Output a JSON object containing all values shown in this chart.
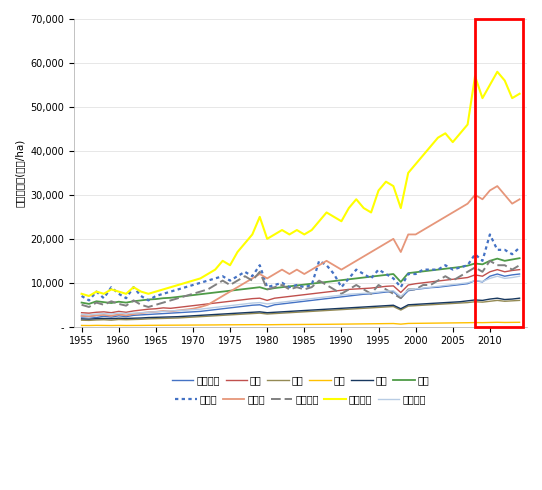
{
  "ylabel": "토지생산성(천원/ha)",
  "years": [
    1955,
    1956,
    1957,
    1958,
    1959,
    1960,
    1961,
    1962,
    1963,
    1964,
    1965,
    1966,
    1967,
    1968,
    1969,
    1970,
    1971,
    1972,
    1973,
    1974,
    1975,
    1976,
    1977,
    1978,
    1979,
    1980,
    1981,
    1982,
    1983,
    1984,
    1985,
    1986,
    1987,
    1988,
    1989,
    1990,
    1991,
    1992,
    1993,
    1994,
    1995,
    1996,
    1997,
    1998,
    1999,
    2000,
    2001,
    2002,
    2003,
    2004,
    2005,
    2006,
    2007,
    2008,
    2009,
    2010,
    2011,
    2012,
    2013,
    2014
  ],
  "series": {
    "경종부문": {
      "color": "#4472C4",
      "linestyle": "solid",
      "linewidth": 1.0,
      "values": [
        2200,
        2300,
        2100,
        2400,
        2200,
        2500,
        2300,
        2600,
        2700,
        2800,
        2900,
        3000,
        3100,
        3200,
        3300,
        3400,
        3500,
        3700,
        3900,
        4100,
        4300,
        4500,
        4700,
        4900,
        5000,
        4500,
        5000,
        5200,
        5400,
        5600,
        5800,
        6000,
        6200,
        6400,
        6600,
        6800,
        7000,
        7200,
        7400,
        7500,
        7700,
        7900,
        8000,
        6500,
        8200,
        8500,
        8700,
        8900,
        9000,
        9200,
        9400,
        9600,
        9800,
        10500,
        10200,
        11500,
        12000,
        11500,
        11800,
        12000
      ]
    },
    "미곡": {
      "color": "#C0504D",
      "linestyle": "solid",
      "linewidth": 1.0,
      "values": [
        3200,
        3100,
        3300,
        3400,
        3200,
        3500,
        3300,
        3600,
        3800,
        4000,
        4100,
        4300,
        4200,
        4400,
        4600,
        4800,
        5000,
        5200,
        5400,
        5600,
        5800,
        6000,
        6200,
        6400,
        6500,
        6000,
        6500,
        6700,
        6900,
        7100,
        7300,
        7500,
        7700,
        7900,
        8100,
        8300,
        8500,
        8600,
        8700,
        8800,
        9000,
        9200,
        9300,
        7800,
        9500,
        9800,
        10000,
        10200,
        10400,
        10600,
        10800,
        11000,
        11200,
        11800,
        11500,
        12500,
        13000,
        12500,
        12800,
        13000
      ]
    },
    "맥류": {
      "color": "#948A54",
      "linestyle": "solid",
      "linewidth": 1.0,
      "values": [
        1500,
        1450,
        1550,
        1600,
        1500,
        1650,
        1600,
        1650,
        1700,
        1800,
        1850,
        1900,
        1950,
        2000,
        2100,
        2200,
        2300,
        2400,
        2500,
        2600,
        2700,
        2800,
        2900,
        3000,
        3100,
        2900,
        3000,
        3100,
        3200,
        3300,
        3400,
        3500,
        3600,
        3700,
        3800,
        3900,
        4000,
        4100,
        4200,
        4300,
        4400,
        4500,
        4600,
        3800,
        4700,
        4800,
        4900,
        5000,
        5100,
        5200,
        5300,
        5400,
        5500,
        5700,
        5600,
        5800,
        6000,
        5800,
        5900,
        6000
      ]
    },
    "잡곡": {
      "color": "#FFC000",
      "linestyle": "solid",
      "linewidth": 1.0,
      "values": [
        300,
        280,
        320,
        300,
        280,
        310,
        290,
        300,
        310,
        330,
        340,
        350,
        360,
        370,
        380,
        390,
        400,
        410,
        420,
        440,
        450,
        460,
        470,
        480,
        490,
        460,
        480,
        500,
        510,
        520,
        530,
        540,
        550,
        560,
        580,
        600,
        620,
        640,
        660,
        680,
        700,
        720,
        740,
        600,
        760,
        780,
        800,
        820,
        840,
        860,
        880,
        900,
        920,
        960,
        940,
        980,
        1020,
        980,
        1000,
        1020
      ]
    },
    "두류": {
      "color": "#17375E",
      "linestyle": "solid",
      "linewidth": 1.0,
      "values": [
        1800,
        1750,
        1850,
        1900,
        1850,
        1950,
        1900,
        1950,
        2000,
        2100,
        2150,
        2200,
        2250,
        2300,
        2400,
        2500,
        2600,
        2700,
        2800,
        2900,
        3000,
        3100,
        3200,
        3300,
        3400,
        3200,
        3300,
        3400,
        3500,
        3600,
        3700,
        3800,
        3900,
        4000,
        4100,
        4200,
        4300,
        4400,
        4500,
        4600,
        4700,
        4800,
        4900,
        4100,
        5000,
        5100,
        5200,
        5300,
        5400,
        5500,
        5600,
        5700,
        5900,
        6100,
        6000,
        6300,
        6500,
        6200,
        6300,
        6500
      ]
    },
    "서류": {
      "color": "#4E9B47",
      "linestyle": "solid",
      "linewidth": 1.3,
      "values": [
        5500,
        5200,
        5800,
        5600,
        5400,
        5700,
        5500,
        5800,
        6000,
        6200,
        6300,
        6500,
        6600,
        6800,
        7000,
        7200,
        7400,
        7600,
        7800,
        8000,
        8200,
        8400,
        8600,
        8800,
        9000,
        8500,
        8800,
        9000,
        9200,
        9400,
        9600,
        9800,
        10000,
        10200,
        10400,
        10600,
        10800,
        11000,
        11200,
        11400,
        11600,
        11800,
        12000,
        10200,
        12200,
        12400,
        12600,
        12800,
        13000,
        13200,
        13400,
        13600,
        13900,
        14400,
        14200,
        15000,
        15500,
        15000,
        15300,
        15600
      ]
    },
    "과일류": {
      "color": "#4472C4",
      "linestyle": "dotted",
      "linewidth": 1.6,
      "values": [
        7000,
        6000,
        8000,
        6500,
        9000,
        7500,
        6500,
        9000,
        7000,
        6000,
        7000,
        7500,
        8000,
        8500,
        9000,
        9500,
        10000,
        10500,
        11000,
        11500,
        10500,
        11500,
        12500,
        11500,
        14000,
        9000,
        9500,
        10000,
        9000,
        9500,
        9000,
        9500,
        15000,
        14000,
        12000,
        9000,
        11000,
        13000,
        12000,
        11000,
        13000,
        12000,
        11000,
        9000,
        12000,
        12000,
        13000,
        13000,
        13000,
        14000,
        13000,
        13500,
        14000,
        16500,
        15000,
        21000,
        17500,
        17500,
        16500,
        18000
      ]
    },
    "채소류": {
      "color": "#E6967A",
      "linestyle": "solid",
      "linewidth": 1.3,
      "values": [
        2500,
        2400,
        2600,
        2700,
        2500,
        2800,
        2600,
        2900,
        3100,
        3300,
        3400,
        3600,
        3500,
        3700,
        3900,
        4100,
        4500,
        5000,
        6000,
        7000,
        8000,
        9000,
        10000,
        11000,
        12000,
        11000,
        12000,
        13000,
        12000,
        13000,
        12000,
        13000,
        14000,
        15000,
        14000,
        13000,
        14000,
        15000,
        16000,
        17000,
        18000,
        19000,
        20000,
        17000,
        21000,
        21000,
        22000,
        23000,
        24000,
        25000,
        26000,
        27000,
        28000,
        30000,
        29000,
        31000,
        32000,
        30000,
        28000,
        29000
      ]
    },
    "노지채소": {
      "color": "#808080",
      "linestyle": "dashed",
      "linewidth": 1.4,
      "values": [
        5000,
        4500,
        5500,
        5000,
        5800,
        5200,
        4800,
        6000,
        5000,
        4500,
        5000,
        5500,
        6000,
        6500,
        7000,
        7500,
        8000,
        8500,
        9500,
        10500,
        9500,
        10500,
        11500,
        10500,
        12500,
        8500,
        9000,
        9500,
        8500,
        9000,
        8500,
        9000,
        10500,
        9500,
        8500,
        7500,
        8500,
        9500,
        8500,
        7500,
        9500,
        8500,
        7500,
        6500,
        8500,
        8500,
        9500,
        9500,
        10500,
        11500,
        10500,
        11500,
        12500,
        13500,
        12500,
        15000,
        14000,
        14000,
        13000,
        14000
      ]
    },
    "시설채소": {
      "color": "#FFFF00",
      "linestyle": "solid",
      "linewidth": 1.5,
      "values": [
        7500,
        7000,
        8000,
        7500,
        8500,
        8000,
        7500,
        9000,
        8000,
        7500,
        8000,
        8500,
        9000,
        9500,
        10000,
        10500,
        11000,
        12000,
        13000,
        15000,
        14000,
        17000,
        19000,
        21000,
        25000,
        20000,
        21000,
        22000,
        21000,
        22000,
        21000,
        22000,
        24000,
        26000,
        25000,
        24000,
        27000,
        29000,
        27000,
        26000,
        31000,
        33000,
        32000,
        27000,
        35000,
        37000,
        39000,
        41000,
        43000,
        44000,
        42000,
        44000,
        46000,
        57000,
        52000,
        55000,
        58000,
        56000,
        52000,
        53000
      ]
    },
    "특용작물": {
      "color": "#B8CCE4",
      "linestyle": "solid",
      "linewidth": 1.0,
      "values": [
        2800,
        2700,
        2900,
        3000,
        2900,
        3100,
        3000,
        3100,
        3200,
        3300,
        3400,
        3500,
        3600,
        3700,
        3800,
        3900,
        4000,
        4200,
        4400,
        4600,
        4800,
        5000,
        5200,
        5400,
        5500,
        5200,
        5400,
        5600,
        5800,
        6000,
        6200,
        6400,
        6600,
        6800,
        7000,
        7200,
        7400,
        7500,
        7600,
        7700,
        7900,
        8100,
        8200,
        6900,
        8400,
        8600,
        8800,
        9000,
        9200,
        9400,
        9600,
        9800,
        10000,
        10500,
        10300,
        11000,
        11500,
        11000,
        11200,
        11500
      ]
    }
  },
  "ylim": [
    0,
    70000
  ],
  "yticks": [
    0,
    10000,
    20000,
    30000,
    40000,
    50000,
    60000,
    70000
  ],
  "ytick_labels": [
    "-",
    "10,000",
    "20,000",
    "30,000",
    "40,000",
    "50,000",
    "60,000",
    "70,000"
  ],
  "xticks": [
    1955,
    1960,
    1965,
    1970,
    1975,
    1980,
    1985,
    1990,
    1995,
    2000,
    2005,
    2010
  ],
  "xlim": [
    1954,
    2015
  ],
  "rect_x1": 2008,
  "rect_x2": 2014.5,
  "rect_y1": 0,
  "rect_y2": 70000,
  "rect_color": "#FF0000",
  "legend_row1": [
    "경종부문",
    "미곡",
    "맥류",
    "잡곡",
    "두류",
    "서류"
  ],
  "legend_row2": [
    "과일류",
    "채소류",
    "노지채소",
    "시설채소",
    "특용작물"
  ]
}
